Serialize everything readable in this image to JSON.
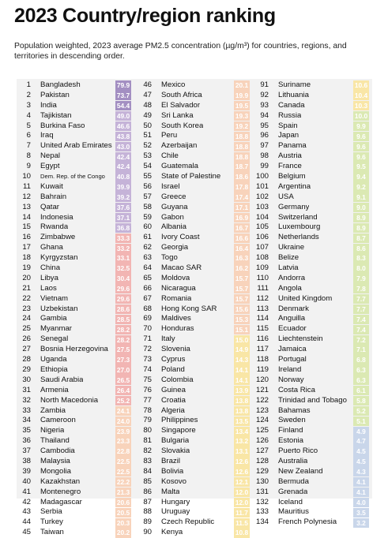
{
  "title": "2023 Country/region ranking",
  "subtitle": "Population weighted, 2023 average PM2.5 concentration (µg/m³) for countries, regions, and territories in descending order.",
  "columns": [
    [
      [
        "1",
        "Bangladesh",
        "79.9"
      ],
      [
        "2",
        "Pakistan",
        "73.7"
      ],
      [
        "3",
        "India",
        "54.4"
      ],
      [
        "4",
        "Tajikistan",
        "49.0"
      ],
      [
        "5",
        "Burkina Faso",
        "46.6"
      ],
      [
        "6",
        "Iraq",
        "43.8"
      ],
      [
        "7",
        "United Arab Emirates",
        "43.0"
      ],
      [
        "8",
        "Nepal",
        "42.4"
      ],
      [
        "9",
        "Egypt",
        "42.4"
      ],
      [
        "10",
        "Dem. Rep. of the Congo",
        "40.8"
      ],
      [
        "11",
        "Kuwait",
        "39.9"
      ],
      [
        "12",
        "Bahrain",
        "39.2"
      ],
      [
        "13",
        "Qatar",
        "37.6"
      ],
      [
        "14",
        "Indonesia",
        "37.1"
      ],
      [
        "15",
        "Rwanda",
        "36.8"
      ],
      [
        "16",
        "Zimbabwe",
        "33.3"
      ],
      [
        "17",
        "Ghana",
        "33.2"
      ],
      [
        "18",
        "Kyrgyzstan",
        "33.1"
      ],
      [
        "19",
        "China",
        "32.5"
      ],
      [
        "20",
        "Libya",
        "30.4"
      ],
      [
        "21",
        "Laos",
        "29.6"
      ],
      [
        "22",
        "Vietnam",
        "29.6"
      ],
      [
        "23",
        "Uzbekistan",
        "28.6"
      ],
      [
        "24",
        "Gambia",
        "28.5"
      ],
      [
        "25",
        "Myanmar",
        "28.2"
      ],
      [
        "26",
        "Senegal",
        "28.2"
      ],
      [
        "27",
        "Bosnia Herzegovina",
        "27.5"
      ],
      [
        "28",
        "Uganda",
        "27.3"
      ],
      [
        "29",
        "Ethiopia",
        "27.0"
      ],
      [
        "30",
        "Saudi Arabia",
        "26.5"
      ],
      [
        "31",
        "Armenia",
        "26.4"
      ],
      [
        "32",
        "North Macedonia",
        "25.2"
      ],
      [
        "33",
        "Zambia",
        "24.1"
      ],
      [
        "34",
        "Cameroon",
        "24.0"
      ],
      [
        "35",
        "Nigeria",
        "23.9"
      ],
      [
        "36",
        "Thailand",
        "23.3"
      ],
      [
        "37",
        "Cambodia",
        "22.8"
      ],
      [
        "38",
        "Malaysia",
        "22.5"
      ],
      [
        "39",
        "Mongolia",
        "22.5"
      ],
      [
        "40",
        "Kazakhstan",
        "22.2"
      ],
      [
        "41",
        "Montenegro",
        "21.3"
      ],
      [
        "42",
        "Madagascar",
        "20.6"
      ],
      [
        "43",
        "Serbia",
        "20.5"
      ],
      [
        "44",
        "Turkey",
        "20.3"
      ],
      [
        "45",
        "Taiwan",
        "20.2"
      ]
    ],
    [
      [
        "46",
        "Mexico",
        "20.1"
      ],
      [
        "47",
        "South Africa",
        "19.9"
      ],
      [
        "48",
        "El Salvador",
        "19.5"
      ],
      [
        "49",
        "Sri Lanka",
        "19.3"
      ],
      [
        "50",
        "South Korea",
        "19.2"
      ],
      [
        "51",
        "Peru",
        "18.8"
      ],
      [
        "52",
        "Azerbaijan",
        "18.8"
      ],
      [
        "53",
        "Chile",
        "18.8"
      ],
      [
        "54",
        "Guatemala",
        "18.7"
      ],
      [
        "55",
        "State of Palestine",
        "18.6"
      ],
      [
        "56",
        "Israel",
        "17.8"
      ],
      [
        "57",
        "Greece",
        "17.4"
      ],
      [
        "58",
        "Guyana",
        "17.1"
      ],
      [
        "59",
        "Gabon",
        "16.9"
      ],
      [
        "60",
        "Albania",
        "16.7"
      ],
      [
        "61",
        "Ivory Coast",
        "16.6"
      ],
      [
        "62",
        "Georgia",
        "16.4"
      ],
      [
        "63",
        "Togo",
        "16.3"
      ],
      [
        "64",
        "Macao SAR",
        "16.2"
      ],
      [
        "65",
        "Moldova",
        "15.7"
      ],
      [
        "66",
        "Nicaragua",
        "15.7"
      ],
      [
        "67",
        "Romania",
        "15.7"
      ],
      [
        "68",
        "Hong Kong SAR",
        "15.6"
      ],
      [
        "69",
        "Maldives",
        "15.3"
      ],
      [
        "70",
        "Honduras",
        "15.1"
      ],
      [
        "71",
        "Italy",
        "15.0"
      ],
      [
        "72",
        "Slovenia",
        "14.9"
      ],
      [
        "73",
        "Cyprus",
        "14.3"
      ],
      [
        "74",
        "Poland",
        "14.1"
      ],
      [
        "75",
        "Colombia",
        "14.1"
      ],
      [
        "76",
        "Guinea",
        "13.9"
      ],
      [
        "77",
        "Croatia",
        "13.8"
      ],
      [
        "78",
        "Algeria",
        "13.8"
      ],
      [
        "79",
        "Philippines",
        "13.5"
      ],
      [
        "80",
        "Singapore",
        "13.4"
      ],
      [
        "81",
        "Bulgaria",
        "13.2"
      ],
      [
        "82",
        "Slovakia",
        "13.1"
      ],
      [
        "83",
        "Brazil",
        "12.6"
      ],
      [
        "84",
        "Bolivia",
        "12.6"
      ],
      [
        "85",
        "Kosovo",
        "12.1"
      ],
      [
        "86",
        "Malta",
        "12.0"
      ],
      [
        "87",
        "Hungary",
        "12.0"
      ],
      [
        "88",
        "Uruguay",
        "11.7"
      ],
      [
        "89",
        "Czech Republic",
        "11.5"
      ],
      [
        "90",
        "Kenya",
        "10.8"
      ]
    ],
    [
      [
        "91",
        "Suriname",
        "10.6"
      ],
      [
        "92",
        "Lithuania",
        "10.4"
      ],
      [
        "93",
        "Canada",
        "10.3"
      ],
      [
        "94",
        "Russia",
        "10.0"
      ],
      [
        "95",
        "Spain",
        "9.9"
      ],
      [
        "96",
        "Japan",
        "9.6"
      ],
      [
        "97",
        "Panama",
        "9.6"
      ],
      [
        "98",
        "Austria",
        "9.6"
      ],
      [
        "99",
        "France",
        "9.5"
      ],
      [
        "100",
        "Belgium",
        "9.4"
      ],
      [
        "101",
        "Argentina",
        "9.2"
      ],
      [
        "102",
        "USA",
        "9.1"
      ],
      [
        "103",
        "Germany",
        "9.0"
      ],
      [
        "104",
        "Switzerland",
        "8.9"
      ],
      [
        "105",
        "Luxembourg",
        "8.9"
      ],
      [
        "106",
        "Netherlands",
        "8.7"
      ],
      [
        "107",
        "Ukraine",
        "8.6"
      ],
      [
        "108",
        "Belize",
        "8.3"
      ],
      [
        "109",
        "Latvia",
        "8.0"
      ],
      [
        "110",
        "Andorra",
        "7.9"
      ],
      [
        "111",
        "Angola",
        "7.8"
      ],
      [
        "112",
        "United Kingdom",
        "7.7"
      ],
      [
        "113",
        "Denmark",
        "7.7"
      ],
      [
        "114",
        "Anguilla",
        "7.4"
      ],
      [
        "115",
        "Ecuador",
        "7.4"
      ],
      [
        "116",
        "Liechtenstein",
        "7.2"
      ],
      [
        "117",
        "Jamaica",
        "7.1"
      ],
      [
        "118",
        "Portugal",
        "6.8"
      ],
      [
        "119",
        "Ireland",
        "6.3"
      ],
      [
        "120",
        "Norway",
        "6.3"
      ],
      [
        "121",
        "Costa Rica",
        "6.1"
      ],
      [
        "122",
        "Trinidad and Tobago",
        "5.8"
      ],
      [
        "123",
        "Bahamas",
        "5.2"
      ],
      [
        "124",
        "Sweden",
        "5.1"
      ],
      [
        "125",
        "Finland",
        "4.9"
      ],
      [
        "126",
        "Estonia",
        "4.7"
      ],
      [
        "127",
        "Puerto Rico",
        "4.5"
      ],
      [
        "128",
        "Australia",
        "4.5"
      ],
      [
        "129",
        "New Zealand",
        "4.3"
      ],
      [
        "130",
        "Bermuda",
        "4.1"
      ],
      [
        "131",
        "Grenada",
        "4.1"
      ],
      [
        "132",
        "Iceland",
        "4.0"
      ],
      [
        "133",
        "Mauritius",
        "3.5"
      ],
      [
        "134",
        "French Polynesia",
        "3.2"
      ]
    ]
  ],
  "colors": {
    "table_background": "#f2f2f2",
    "scale_over_50": "#a38fc2",
    "scale_35_50": "#c5b3d8",
    "scale_25_35": "#f2b5b3",
    "scale_15_25": "#f8d3bb",
    "scale_10_15": "#f9e6a6",
    "scale_5_10": "#dbe9b3",
    "scale_under_5": "#c9d6ea"
  }
}
